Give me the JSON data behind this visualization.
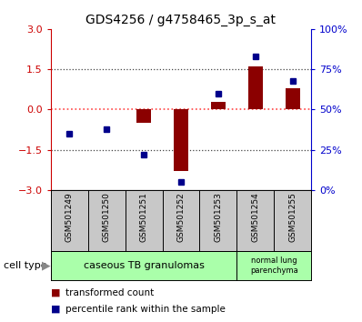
{
  "title": "GDS4256 / g4758465_3p_s_at",
  "samples": [
    "GSM501249",
    "GSM501250",
    "GSM501251",
    "GSM501252",
    "GSM501253",
    "GSM501254",
    "GSM501255"
  ],
  "transformed_count": [
    0.02,
    0.0,
    -0.5,
    -2.3,
    0.3,
    1.6,
    0.8
  ],
  "percentile_rank": [
    35,
    38,
    22,
    5,
    60,
    83,
    68
  ],
  "ylim_left": [
    -3,
    3
  ],
  "yticks_left": [
    -3,
    -1.5,
    0,
    1.5,
    3
  ],
  "yticks_right": [
    0,
    25,
    50,
    75,
    100
  ],
  "yticklabels_right": [
    "0%",
    "25%",
    "50%",
    "75%",
    "100%"
  ],
  "cell_type_groups": [
    {
      "label": "caseous TB granulomas",
      "spans": [
        0,
        4
      ],
      "color": "#aaffaa"
    },
    {
      "label": "normal lung\nparenchyma",
      "spans": [
        5,
        6
      ],
      "color": "#aaffaa"
    }
  ],
  "bar_color": "#8B0000",
  "dot_color": "#00008B",
  "left_axis_color": "#cc0000",
  "right_axis_color": "#0000cc",
  "hline_zero_color": "#ff4444",
  "hline_dotted_color": "#444444",
  "background_labels": "#c8c8c8",
  "legend_red_label": "transformed count",
  "legend_blue_label": "percentile rank within the sample",
  "cell_type_label": "cell type",
  "figsize": [
    3.98,
    3.54
  ],
  "dpi": 100
}
